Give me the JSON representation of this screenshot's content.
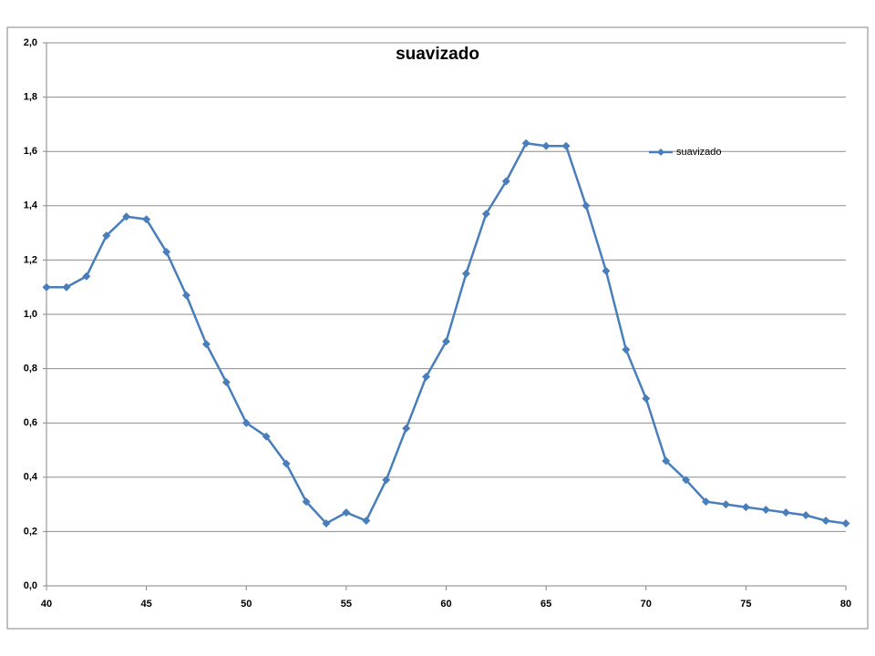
{
  "chart_data": {
    "type": "line",
    "title": "suavizado",
    "x": [
      40,
      41,
      42,
      43,
      44,
      45,
      46,
      47,
      48,
      49,
      50,
      51,
      52,
      53,
      54,
      55,
      56,
      57,
      58,
      59,
      60,
      61,
      62,
      63,
      64,
      65,
      66,
      67,
      68,
      69,
      70,
      71,
      72,
      73,
      74,
      75,
      76,
      77,
      78,
      79,
      80
    ],
    "series": [
      {
        "name": "suavizado",
        "color": "#4a7ebb",
        "values": [
          1.1,
          1.1,
          1.14,
          1.29,
          1.36,
          1.35,
          1.23,
          1.07,
          0.89,
          0.75,
          0.6,
          0.55,
          0.45,
          0.31,
          0.23,
          0.27,
          0.24,
          0.39,
          0.58,
          0.77,
          0.9,
          1.15,
          1.37,
          1.49,
          1.63,
          1.62,
          1.62,
          1.4,
          1.16,
          0.87,
          0.69,
          0.46,
          0.39,
          0.31,
          0.3,
          0.29,
          0.28,
          0.27,
          0.26,
          0.24,
          0.23
        ]
      }
    ],
    "xlim": [
      40,
      80
    ],
    "xticks": [
      40,
      45,
      50,
      55,
      60,
      65,
      70,
      75,
      80
    ],
    "ylim": [
      0,
      2
    ],
    "yticks": [
      {
        "value": 0,
        "label": "0,0"
      },
      {
        "value": 0.2,
        "label": "0,2"
      },
      {
        "value": 0.4,
        "label": "0,4"
      },
      {
        "value": 0.6,
        "label": "0,6"
      },
      {
        "value": 0.8,
        "label": "0,8"
      },
      {
        "value": 1,
        "label": "1,0"
      },
      {
        "value": 1.2,
        "label": "1,2"
      },
      {
        "value": 1.4,
        "label": "1,4"
      },
      {
        "value": 1.6,
        "label": "1,6"
      },
      {
        "value": 1.8,
        "label": "1,8"
      },
      {
        "value": 2,
        "label": "2,0"
      }
    ],
    "grid": true,
    "legend": "upper-right"
  }
}
